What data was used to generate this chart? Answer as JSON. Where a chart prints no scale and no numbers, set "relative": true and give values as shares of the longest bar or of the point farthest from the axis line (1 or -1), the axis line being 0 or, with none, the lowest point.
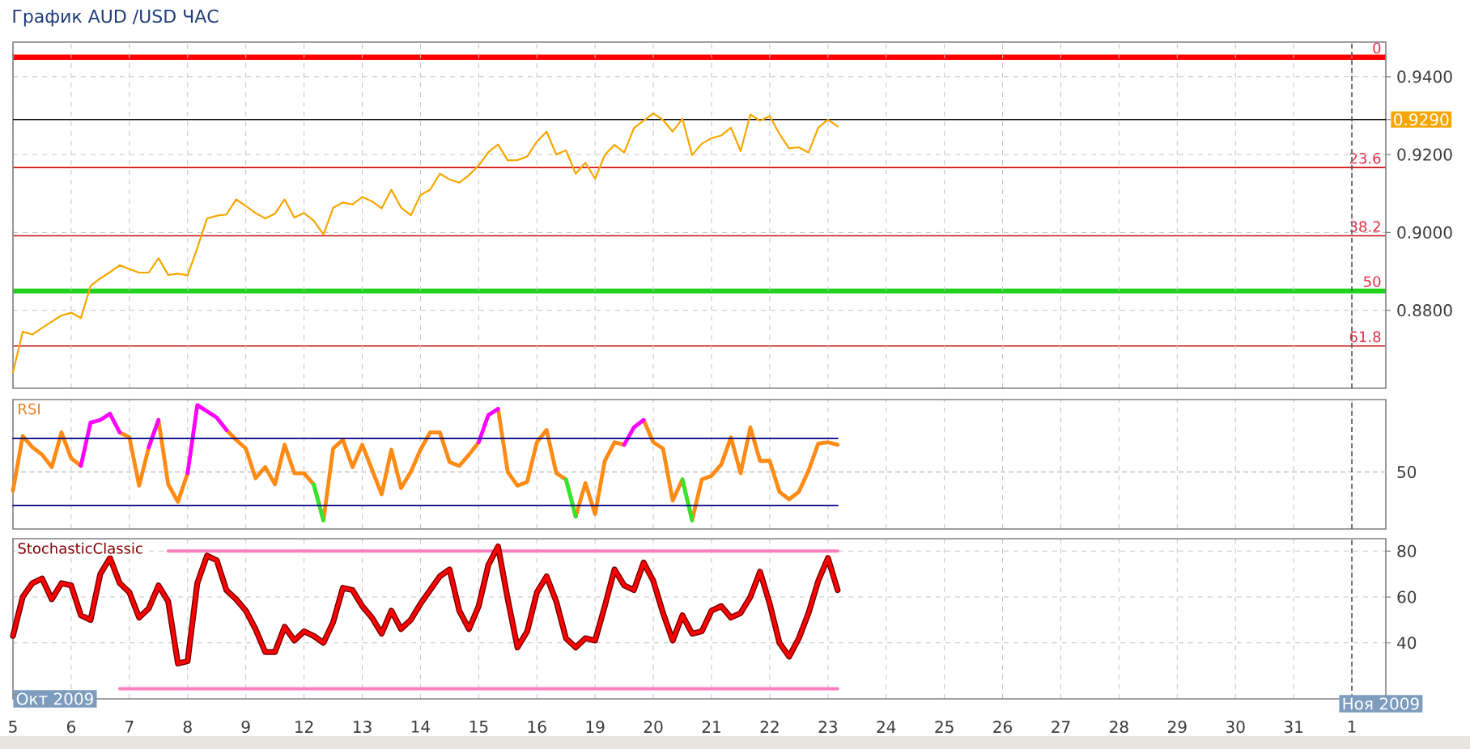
{
  "chart_data": [
    {
      "type": "line",
      "title": "График AUD /USD ЧАС",
      "categories": [
        "5",
        null,
        null,
        null,
        null,
        null,
        "6",
        null,
        null,
        null,
        null,
        null,
        "7",
        null,
        null,
        null,
        null,
        null,
        "8",
        null,
        null,
        null,
        null,
        null,
        "9",
        null,
        null,
        null,
        null,
        null,
        "12",
        null,
        null,
        null,
        null,
        null,
        "13",
        null,
        null,
        null,
        null,
        null,
        "14",
        null,
        null,
        null,
        null,
        null,
        "15",
        null,
        null,
        null,
        null,
        null,
        "16",
        null,
        null,
        null,
        null,
        null,
        "19",
        null,
        null,
        null,
        null,
        null,
        "20",
        null,
        null,
        null,
        null,
        null,
        "21",
        null,
        null,
        null,
        null,
        null,
        "22",
        null,
        null,
        null,
        null,
        null,
        "23",
        null,
        null,
        null,
        null,
        null,
        "24",
        null,
        null,
        null,
        null,
        null,
        "25",
        null,
        null,
        null,
        null,
        null,
        "26",
        null,
        null,
        null,
        null,
        null,
        "27",
        null,
        null,
        null,
        null,
        null,
        "28",
        null,
        null,
        null,
        null,
        null,
        "29",
        null,
        null,
        null,
        null,
        null,
        "30",
        null,
        null,
        null,
        null,
        null,
        "31",
        null,
        null,
        null,
        null,
        null,
        "1",
        null,
        null,
        null
      ],
      "ylim": [
        0.86,
        0.9489
      ],
      "yticks": [
        {
          "value": 0.88,
          "label": "0.8800"
        },
        {
          "value": 0.9,
          "label": "0.9000"
        },
        {
          "value": 0.92,
          "label": "0.9200"
        },
        {
          "value": 0.929,
          "label": "0.9290"
        },
        {
          "value": 0.94,
          "label": "0.9400"
        }
      ],
      "y2lim": [
        70.83,
        -3.25
      ],
      "grid": true,
      "tick_labels": "y",
      "series": [
        {
          "color": "#f7a600",
          "values": [
            0.8641,
            0.8745,
            0.8738,
            0.8755,
            0.8771,
            0.8787,
            0.8794,
            0.878,
            0.8863,
            0.8882,
            0.8898,
            0.8916,
            0.8906,
            0.8897,
            0.8897,
            0.8934,
            0.8891,
            0.8894,
            0.889,
            0.896,
            0.9036,
            0.9043,
            0.9046,
            0.9085,
            0.9068,
            0.905,
            0.9036,
            0.9048,
            0.9085,
            0.9038,
            0.905,
            0.903,
            0.8995,
            0.9063,
            0.9077,
            0.9072,
            0.9091,
            0.908,
            0.9062,
            0.911,
            0.9064,
            0.9044,
            0.9096,
            0.911,
            0.9151,
            0.9136,
            0.9128,
            0.9147,
            0.9172,
            0.9206,
            0.9226,
            0.9185,
            0.9186,
            0.9195,
            0.9233,
            0.9259,
            0.92,
            0.9211,
            0.9151,
            0.9179,
            0.9138,
            0.9199,
            0.9225,
            0.9205,
            0.9268,
            0.9287,
            0.9306,
            0.9289,
            0.9259,
            0.9292,
            0.9199,
            0.9228,
            0.9242,
            0.9249,
            0.9269,
            0.9209,
            0.9303,
            0.9287,
            0.9299,
            0.9253,
            0.9216,
            0.9219,
            0.9205,
            0.9269,
            0.929,
            0.9272,
            null,
            null,
            null,
            null,
            null,
            null,
            null,
            null,
            null,
            null,
            null,
            null,
            null,
            null,
            null,
            null,
            null,
            null,
            null,
            null,
            null,
            null,
            null,
            null,
            null,
            null,
            null,
            null,
            null,
            null,
            null,
            null,
            null,
            null,
            null,
            null,
            null,
            null,
            null,
            null,
            null,
            null,
            null,
            null,
            null,
            null,
            null,
            null,
            null,
            null,
            null,
            null,
            null,
            null,
            null,
            null
          ]
        }
      ],
      "ref_lines": [
        {
          "axis": "y2",
          "value": 0,
          "label": "0",
          "color": "#ff0000"
        },
        {
          "axis": "y",
          "value": 0.929,
          "color": "#000000"
        },
        {
          "axis": "y2",
          "value": 23.6,
          "label": "23.6",
          "color": "#d01010"
        },
        {
          "axis": "y2",
          "value": 38.2,
          "label": "38.2",
          "color": "#d01010"
        },
        {
          "axis": "y2",
          "value": 50,
          "label": "50",
          "color": "#1ed21e"
        },
        {
          "axis": "y2",
          "value": 61.8,
          "label": "61.8",
          "color": "#d01010"
        },
        {
          "axis": "x",
          "value": "1",
          "color": "#505050",
          "line_style": "dashed"
        }
      ]
    },
    {
      "type": "line",
      "title": "RSI",
      "relative": true,
      "categories": [
        "5",
        null,
        null,
        null,
        null,
        null,
        "6",
        null,
        null,
        null,
        null,
        null,
        "7",
        null,
        null,
        null,
        null,
        null,
        "8",
        null,
        null,
        null,
        null,
        null,
        "9",
        null,
        null,
        null,
        null,
        null,
        "12",
        null,
        null,
        null,
        null,
        null,
        "13",
        null,
        null,
        null,
        null,
        null,
        "14",
        null,
        null,
        null,
        null,
        null,
        "15",
        null,
        null,
        null,
        null,
        null,
        "16",
        null,
        null,
        null,
        null,
        null,
        "19",
        null,
        null,
        null,
        null,
        null,
        "20",
        null,
        null,
        null,
        null,
        null,
        "21",
        null,
        null,
        null,
        null,
        null,
        "22",
        null,
        null,
        null,
        null,
        null,
        "23",
        null,
        null,
        null,
        null,
        null,
        "24",
        null,
        null,
        null,
        null,
        null,
        "25",
        null,
        null,
        null,
        null,
        null,
        "26",
        null,
        null,
        null,
        null,
        null,
        "27",
        null,
        null,
        null,
        null,
        null,
        "28",
        null,
        null,
        null,
        null,
        null,
        "29",
        null,
        null,
        null,
        null,
        null,
        "30",
        null,
        null,
        null,
        null,
        null,
        "31",
        null,
        null,
        null,
        null,
        null,
        "1",
        null,
        null,
        null
      ],
      "grid": "x",
      "tick_labels": false,
      "series": [
        {
          "color": "#ff8a14",
          "values": [
            0.31,
            0.75,
            0.66,
            0.6,
            0.5,
            0.78,
            0.57,
            0.51,
            null,
            null,
            null,
            0.78,
            0.74,
            0.35,
            0.66,
            0.88,
            0.36,
            0.22,
            0.45,
            null,
            null,
            null,
            0.8,
            0.72,
            0.65,
            0.41,
            0.5,
            0.36,
            0.68,
            0.45,
            0.45,
            0.36,
            0.07,
            0.65,
            0.72,
            0.5,
            0.68,
            0.48,
            0.28,
            0.64,
            0.33,
            0.46,
            0.64,
            0.78,
            0.78,
            0.54,
            0.51,
            0.6,
            0.7,
            null,
            0.97,
            0.46,
            0.35,
            0.38,
            0.7,
            0.8,
            0.45,
            0.4,
            0.1,
            0.37,
            0.12,
            0.55,
            0.7,
            0.68,
            null,
            0.88,
            0.7,
            0.65,
            0.23,
            0.4,
            0.07,
            0.4,
            0.43,
            0.52,
            0.74,
            0.45,
            0.82,
            0.55,
            0.55,
            0.3,
            0.24,
            0.3,
            0.47,
            0.69,
            0.7,
            0.68,
            null,
            null,
            null,
            null,
            null,
            null,
            null,
            null,
            null,
            null,
            null,
            null,
            null,
            null,
            null,
            null,
            null,
            null,
            null,
            null,
            null,
            null,
            null,
            null,
            null,
            null,
            null,
            null,
            null,
            null,
            null,
            null,
            null,
            null,
            null,
            null,
            null,
            null,
            null,
            null,
            null,
            null,
            null,
            null,
            null,
            null,
            null,
            null,
            null,
            null,
            null,
            null,
            null,
            null,
            null,
            null
          ]
        },
        {
          "color": "#ff00ff",
          "values": [
            null,
            null,
            null,
            null,
            null,
            null,
            null,
            0.51,
            0.86,
            0.88,
            0.93,
            0.78,
            null,
            null,
            0.66,
            0.88,
            null,
            null,
            0.45,
            1.0,
            0.95,
            0.9,
            0.8,
            null,
            null,
            null,
            null,
            null,
            null,
            null,
            null,
            null,
            null,
            null,
            null,
            null,
            null,
            null,
            null,
            null,
            null,
            null,
            null,
            null,
            null,
            null,
            null,
            null,
            0.7,
            0.92,
            0.97,
            null,
            null,
            null,
            null,
            null,
            null,
            null,
            null,
            null,
            null,
            null,
            null,
            0.68,
            0.82,
            0.88,
            null,
            null,
            null,
            null,
            null,
            null,
            null,
            null,
            null,
            null,
            null,
            null,
            null,
            null,
            null,
            null,
            null,
            null,
            null,
            null,
            null,
            null,
            null,
            null,
            null,
            null,
            null,
            null,
            null,
            null,
            null,
            null,
            null,
            null,
            null,
            null,
            null,
            null,
            null,
            null,
            null,
            null,
            null,
            null,
            null,
            null,
            null,
            null,
            null,
            null,
            null,
            null,
            null,
            null,
            null,
            null,
            null,
            null,
            null,
            null,
            null,
            null,
            null,
            null,
            null,
            null,
            null,
            null,
            null,
            null,
            null,
            null,
            null,
            null,
            null,
            null
          ]
        },
        {
          "color": "#2ee82e",
          "values": [
            null,
            null,
            null,
            null,
            null,
            null,
            null,
            null,
            null,
            null,
            null,
            null,
            null,
            null,
            null,
            null,
            null,
            null,
            null,
            null,
            null,
            null,
            null,
            null,
            null,
            null,
            null,
            null,
            null,
            null,
            null,
            0.36,
            0.07,
            null,
            null,
            null,
            null,
            null,
            null,
            null,
            null,
            null,
            null,
            null,
            null,
            null,
            null,
            null,
            null,
            null,
            null,
            null,
            null,
            null,
            null,
            null,
            null,
            0.4,
            0.1,
            null,
            null,
            null,
            null,
            null,
            null,
            null,
            null,
            null,
            null,
            0.4,
            0.07,
            null,
            null,
            null,
            null,
            null,
            null,
            null,
            null,
            null,
            null,
            null,
            null,
            null,
            null,
            null,
            null,
            null,
            null,
            null,
            null,
            null,
            null,
            null,
            null,
            null,
            null,
            null,
            null,
            null,
            null,
            null,
            null,
            null,
            null,
            null,
            null,
            null,
            null,
            null,
            null,
            null,
            null,
            null,
            null,
            null,
            null,
            null,
            null,
            null,
            null,
            null,
            null,
            null,
            null,
            null,
            null,
            null,
            null,
            null,
            null,
            null,
            null,
            null,
            null,
            null,
            null,
            null,
            null,
            null,
            null,
            null
          ]
        },
        {
          "color": "#000080",
          "values": [
            0.73,
            0.73,
            0.73,
            0.73,
            0.73,
            0.73,
            0.73,
            0.73,
            0.73,
            0.73,
            0.73,
            0.73,
            0.73,
            0.73,
            0.73,
            0.73,
            0.73,
            0.73,
            0.73,
            0.73,
            0.73,
            0.73,
            0.73,
            0.73,
            0.73,
            0.73,
            0.73,
            0.73,
            0.73,
            0.73,
            0.73,
            0.73,
            0.73,
            0.73,
            0.73,
            0.73,
            0.73,
            0.73,
            0.73,
            0.73,
            0.73,
            0.73,
            0.73,
            0.73,
            0.73,
            0.73,
            0.73,
            0.73,
            0.73,
            0.73,
            0.73,
            0.73,
            0.73,
            0.73,
            0.73,
            0.73,
            0.73,
            0.73,
            0.73,
            0.73,
            0.73,
            0.73,
            0.73,
            0.73,
            0.73,
            0.73,
            0.73,
            0.73,
            0.73,
            0.73,
            0.73,
            0.73,
            0.73,
            0.73,
            0.73,
            0.73,
            0.73,
            0.73,
            0.73,
            0.73,
            0.73,
            0.73,
            0.73,
            0.73,
            0.73,
            0.73,
            null,
            null,
            null,
            null,
            null,
            null,
            null,
            null,
            null,
            null,
            null,
            null,
            null,
            null,
            null,
            null,
            null,
            null,
            null,
            null,
            null,
            null,
            null,
            null,
            null,
            null,
            null,
            null,
            null,
            null,
            null,
            null,
            null,
            null,
            null,
            null,
            null,
            null,
            null,
            null,
            null,
            null,
            null,
            null,
            null,
            null,
            null,
            null,
            null,
            null,
            null,
            null,
            null,
            null,
            null,
            null
          ]
        },
        {
          "color": "#000080",
          "values": [
            0.19,
            0.19,
            0.19,
            0.19,
            0.19,
            0.19,
            0.19,
            0.19,
            0.19,
            0.19,
            0.19,
            0.19,
            0.19,
            0.19,
            0.19,
            0.19,
            0.19,
            0.19,
            0.19,
            0.19,
            0.19,
            0.19,
            0.19,
            0.19,
            0.19,
            0.19,
            0.19,
            0.19,
            0.19,
            0.19,
            0.19,
            0.19,
            0.19,
            0.19,
            0.19,
            0.19,
            0.19,
            0.19,
            0.19,
            0.19,
            0.19,
            0.19,
            0.19,
            0.19,
            0.19,
            0.19,
            0.19,
            0.19,
            0.19,
            0.19,
            0.19,
            0.19,
            0.19,
            0.19,
            0.19,
            0.19,
            0.19,
            0.19,
            0.19,
            0.19,
            0.19,
            0.19,
            0.19,
            0.19,
            0.19,
            0.19,
            0.19,
            0.19,
            0.19,
            0.19,
            0.19,
            0.19,
            0.19,
            0.19,
            0.19,
            0.19,
            0.19,
            0.19,
            0.19,
            0.19,
            0.19,
            0.19,
            0.19,
            0.19,
            0.19,
            0.19,
            null,
            null,
            null,
            null,
            null,
            null,
            null,
            null,
            null,
            null,
            null,
            null,
            null,
            null,
            null,
            null,
            null,
            null,
            null,
            null,
            null,
            null,
            null,
            null,
            null,
            null,
            null,
            null,
            null,
            null,
            null,
            null,
            null,
            null,
            null,
            null,
            null,
            null,
            null,
            null,
            null,
            null,
            null,
            null,
            null,
            null,
            null,
            null,
            null,
            null,
            null,
            null,
            null,
            null,
            null,
            null
          ]
        }
      ],
      "ref_lines": [
        {
          "axis": "y",
          "value": 0.46,
          "color": "#c0c0c0",
          "line_style": "dashed"
        },
        {
          "axis": "x",
          "value": "1",
          "color": "#505050",
          "line_style": "dashed"
        }
      ],
      "annotations": [
        "50"
      ]
    },
    {
      "type": "line",
      "title": "StochasticClassic",
      "categories": [
        "5",
        null,
        null,
        null,
        null,
        null,
        "6",
        null,
        null,
        null,
        null,
        null,
        "7",
        null,
        null,
        null,
        null,
        null,
        "8",
        null,
        null,
        null,
        null,
        null,
        "9",
        null,
        null,
        null,
        null,
        null,
        "12",
        null,
        null,
        null,
        null,
        null,
        "13",
        null,
        null,
        null,
        null,
        null,
        "14",
        null,
        null,
        null,
        null,
        null,
        "15",
        null,
        null,
        null,
        null,
        null,
        "16",
        null,
        null,
        null,
        null,
        null,
        "19",
        null,
        null,
        null,
        null,
        null,
        "20",
        null,
        null,
        null,
        null,
        null,
        "21",
        null,
        null,
        null,
        null,
        null,
        "22",
        null,
        null,
        null,
        null,
        null,
        "23",
        null,
        null,
        null,
        null,
        null,
        "24",
        null,
        null,
        null,
        null,
        null,
        "25",
        null,
        null,
        null,
        null,
        null,
        "26",
        null,
        null,
        null,
        null,
        null,
        "27",
        null,
        null,
        null,
        null,
        null,
        "28",
        null,
        null,
        null,
        null,
        null,
        "29",
        null,
        null,
        null,
        null,
        null,
        "30",
        null,
        null,
        null,
        null,
        null,
        "31",
        null,
        null,
        null,
        null,
        null,
        "1",
        null,
        null,
        null
      ],
      "ylim": [
        15.6,
        85.4
      ],
      "yticks": [
        40,
        60,
        80
      ],
      "grid": true,
      "series": [
        {
          "color": "#ff80c0",
          "values": [
            null,
            null,
            null,
            null,
            null,
            null,
            null,
            null,
            null,
            null,
            null,
            null,
            null,
            null,
            null,
            null,
            80,
            80,
            80,
            80,
            80,
            80,
            80,
            80,
            80,
            80,
            80,
            80,
            80,
            80,
            80,
            80,
            80,
            80,
            80,
            80,
            80,
            80,
            80,
            80,
            80,
            80,
            80,
            80,
            80,
            80,
            80,
            80,
            80,
            80,
            80,
            80,
            80,
            80,
            80,
            80,
            80,
            80,
            80,
            80,
            80,
            80,
            80,
            80,
            80,
            80,
            80,
            80,
            80,
            80,
            80,
            80,
            80,
            80,
            80,
            80,
            80,
            80,
            80,
            80,
            80,
            80,
            80,
            80,
            80,
            80,
            null,
            null,
            null,
            null,
            null,
            null,
            null,
            null,
            null,
            null,
            null,
            null,
            null,
            null,
            null,
            null,
            null,
            null,
            null,
            null,
            null,
            null,
            null,
            null,
            null,
            null,
            null,
            null,
            null,
            null,
            null,
            null,
            null,
            null,
            null,
            null,
            null,
            null,
            null,
            null,
            null,
            null,
            null,
            null,
            null,
            null,
            null,
            null,
            null,
            null,
            null,
            null,
            null,
            null,
            null,
            null
          ]
        },
        {
          "color": "#ff80c0",
          "values": [
            null,
            null,
            null,
            null,
            null,
            null,
            null,
            null,
            null,
            null,
            null,
            20,
            20,
            20,
            20,
            20,
            20,
            20,
            20,
            20,
            20,
            20,
            20,
            20,
            20,
            20,
            20,
            20,
            20,
            20,
            20,
            20,
            20,
            20,
            20,
            20,
            20,
            20,
            20,
            20,
            20,
            20,
            20,
            20,
            20,
            20,
            20,
            20,
            20,
            20,
            20,
            20,
            20,
            20,
            20,
            20,
            20,
            20,
            20,
            20,
            20,
            20,
            20,
            20,
            20,
            20,
            20,
            20,
            20,
            20,
            20,
            20,
            20,
            20,
            20,
            20,
            20,
            20,
            20,
            20,
            20,
            20,
            20,
            20,
            20,
            20,
            null,
            null,
            null,
            null,
            null,
            null,
            null,
            null,
            null,
            null,
            null,
            null,
            null,
            null,
            null,
            null,
            null,
            null,
            null,
            null,
            null,
            null,
            null,
            null,
            null,
            null,
            null,
            null,
            null,
            null,
            null,
            null,
            null,
            null,
            null,
            null,
            null,
            null,
            null,
            null,
            null,
            null,
            null,
            null,
            null,
            null,
            null,
            null,
            null,
            null,
            null,
            null,
            null,
            null,
            null,
            null
          ]
        },
        {
          "color": "#ff0000",
          "values": [
            43,
            60,
            66,
            68,
            59,
            66,
            65,
            52,
            50,
            70,
            77,
            66,
            62,
            51,
            55,
            65,
            58,
            31,
            32,
            66,
            78,
            76,
            63,
            59,
            54,
            46,
            36,
            36,
            47,
            41,
            45,
            43,
            40,
            49,
            64,
            63,
            56,
            51,
            44,
            54,
            46,
            50,
            57,
            63,
            69,
            72,
            54,
            46,
            56,
            74,
            82,
            59,
            38,
            45,
            62,
            69,
            58,
            42,
            38,
            42,
            41,
            56,
            72,
            65,
            63,
            75,
            67,
            53,
            41,
            52,
            44,
            45,
            54,
            56,
            51,
            53,
            60,
            71,
            57,
            40,
            34,
            42,
            53,
            67,
            77,
            63,
            null,
            null,
            null,
            null,
            null,
            null,
            null,
            null,
            null,
            null,
            null,
            null,
            null,
            null,
            null,
            null,
            null,
            null,
            null,
            null,
            null,
            null,
            null,
            null,
            null,
            null,
            null,
            null,
            null,
            null,
            null,
            null,
            null,
            null,
            null,
            null,
            null,
            null,
            null,
            null,
            null,
            null,
            null,
            null,
            null,
            null,
            null,
            null,
            null,
            null,
            null,
            null,
            null,
            null,
            null,
            null
          ]
        }
      ],
      "ref_lines": [
        {
          "axis": "x",
          "value": "1",
          "label": "Ноя 2009",
          "color": "#505050",
          "line_style": "dashed"
        }
      ],
      "annotations": [
        "Окт 2009"
      ]
    }
  ]
}
